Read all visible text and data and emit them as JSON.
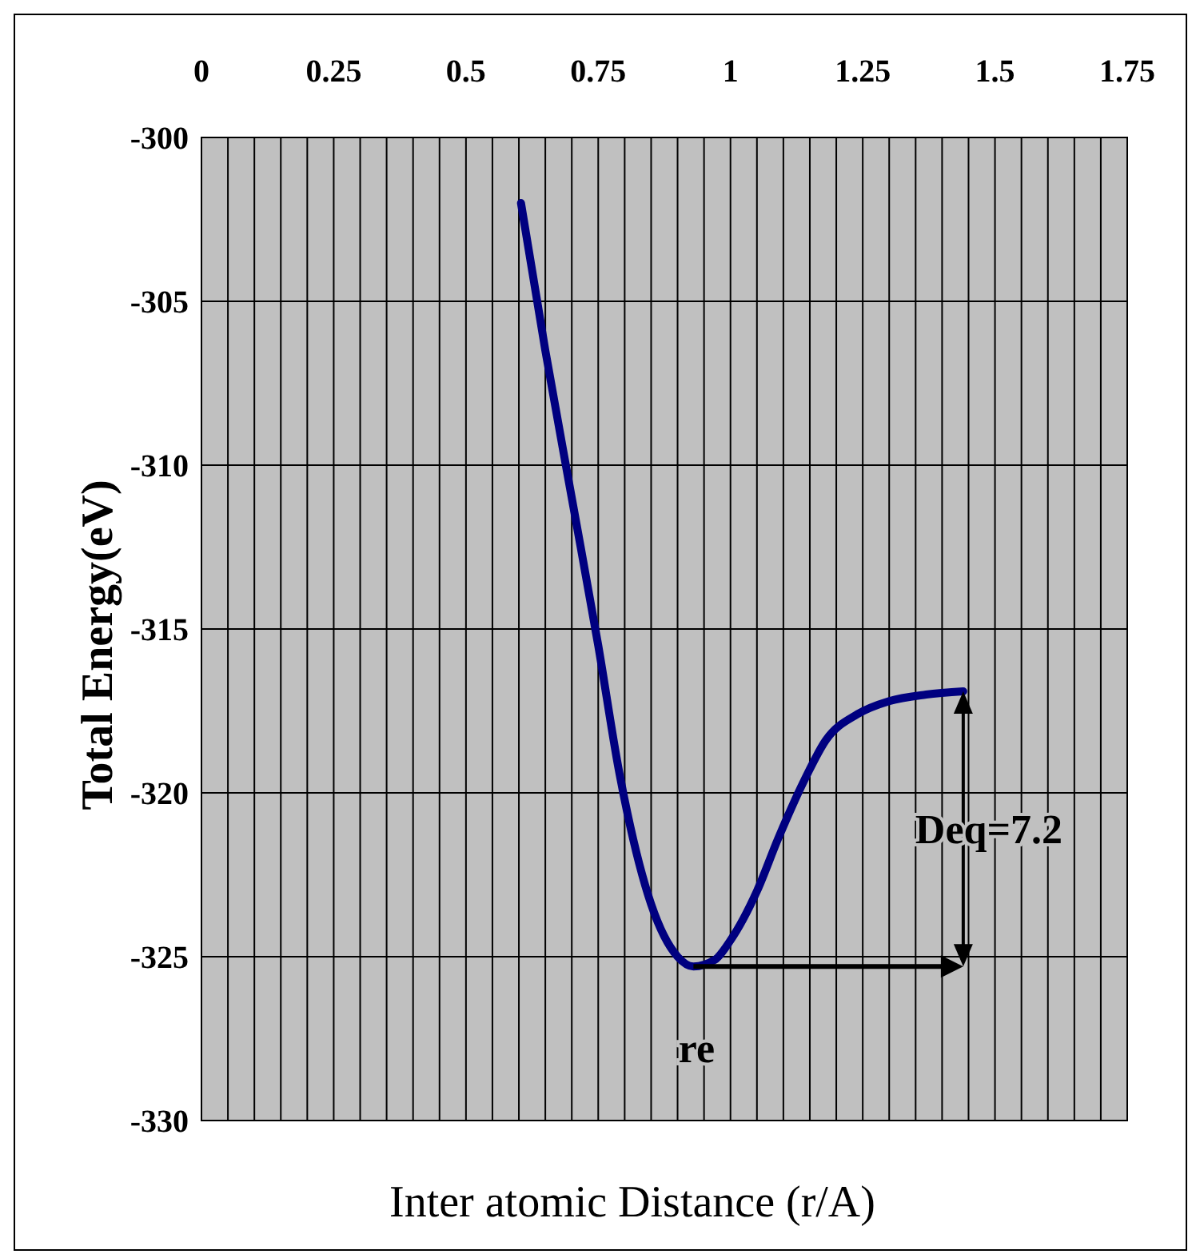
{
  "chart_data": {
    "type": "line",
    "xlabel": "Inter atomic Distance (r/A)",
    "ylabel": "Total Energy(eV)",
    "xlim": [
      0,
      1.75
    ],
    "ylim": [
      -330,
      -300
    ],
    "xticks": [
      0,
      {
        "value": 0.05,
        "label": null
      },
      {
        "value": 0.1,
        "label": null
      },
      {
        "value": 0.15,
        "label": null
      },
      {
        "value": 0.2,
        "label": null
      },
      0.25,
      {
        "value": 0.3,
        "label": null
      },
      {
        "value": 0.35,
        "label": null
      },
      {
        "value": 0.4,
        "label": null
      },
      {
        "value": 0.45,
        "label": null
      },
      0.5,
      {
        "value": 0.55,
        "label": null
      },
      {
        "value": 0.6,
        "label": null
      },
      {
        "value": 0.65,
        "label": null
      },
      {
        "value": 0.7,
        "label": null
      },
      0.75,
      {
        "value": 0.8,
        "label": null
      },
      {
        "value": 0.85,
        "label": null
      },
      {
        "value": 0.9,
        "label": null
      },
      {
        "value": 0.95,
        "label": null
      },
      1,
      {
        "value": 1.05,
        "label": null
      },
      {
        "value": 1.1,
        "label": null
      },
      {
        "value": 1.15,
        "label": null
      },
      {
        "value": 1.2,
        "label": null
      },
      1.25,
      {
        "value": 1.3,
        "label": null
      },
      {
        "value": 1.35,
        "label": null
      },
      {
        "value": 1.4,
        "label": null
      },
      {
        "value": 1.45,
        "label": null
      },
      1.5,
      {
        "value": 1.55,
        "label": null
      },
      {
        "value": 1.6,
        "label": null
      },
      {
        "value": 1.65,
        "label": null
      },
      {
        "value": 1.7,
        "label": null
      },
      1.75
    ],
    "yticks": [
      -330,
      -325,
      -320,
      -315,
      -310,
      -305,
      -300
    ],
    "grid": true,
    "marker": "none",
    "line_style": "solid",
    "series": [
      {
        "color": "#000080",
        "x": [
          0.604,
          0.65,
          0.7,
          0.75,
          0.79,
          0.85,
          0.9,
          0.93,
          0.97,
          1.0,
          1.05,
          1.09,
          1.14,
          1.18,
          1.24,
          1.3,
          1.37,
          1.44
        ],
        "values": [
          -302,
          -306.5,
          -311,
          -315.5,
          -319.4,
          -323.4,
          -325,
          -325.3,
          -325.1,
          -324.5,
          -323,
          -321.4,
          -319.6,
          -318.4,
          -317.6,
          -317.2,
          -317,
          -316.9
        ]
      }
    ],
    "annotations": [
      "Deq=7.2",
      {
        "text": "re",
        "x": 0.93,
        "y": -325.3
      }
    ]
  }
}
